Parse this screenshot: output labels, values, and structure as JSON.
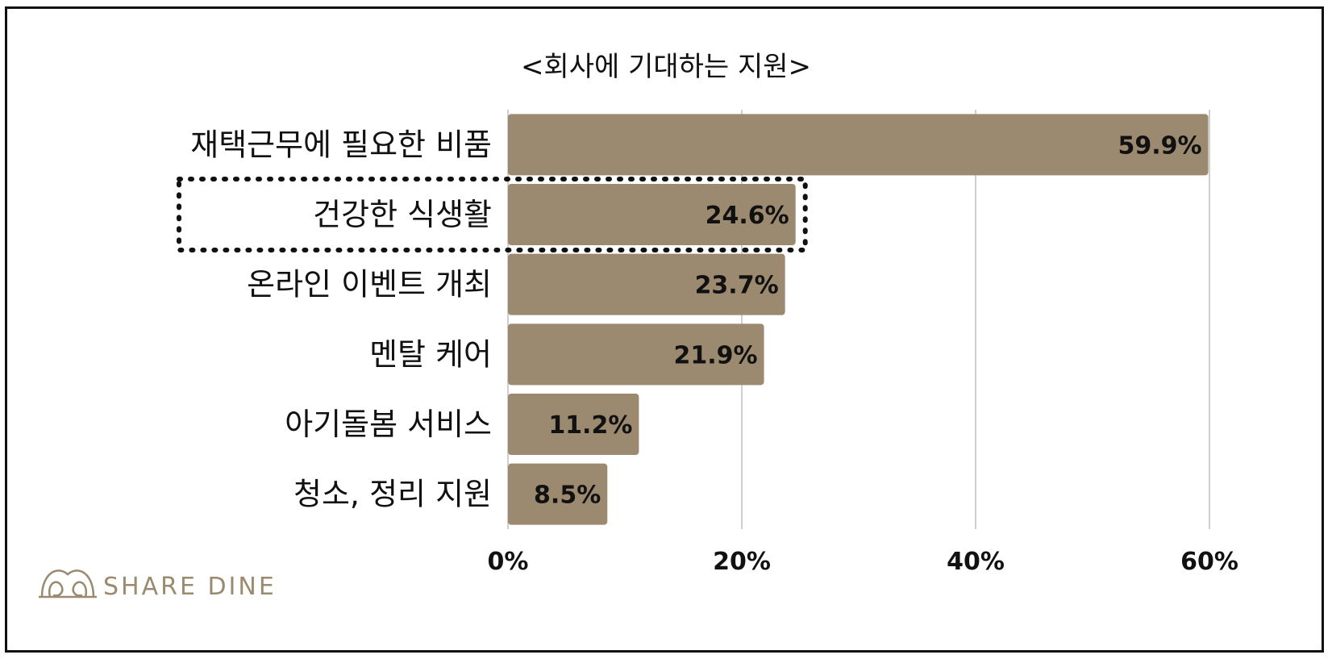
{
  "chart_data": {
    "type": "bar",
    "orientation": "horizontal",
    "title": "<회사에 기대하는 지원>",
    "categories": [
      "재택근무에 필요한 비품",
      "건강한 식생활",
      "온라인 이벤트 개최",
      "멘탈 케어",
      "아기돌봄 서비스",
      "청소, 정리 지원"
    ],
    "values": [
      59.9,
      24.6,
      23.7,
      21.9,
      11.2,
      8.5
    ],
    "value_labels": [
      "59.9%",
      "24.6%",
      "23.7%",
      "21.9%",
      "11.2%",
      "8.5%"
    ],
    "xlim": [
      0,
      60
    ],
    "x_ticks": [
      0,
      20,
      40,
      60
    ],
    "x_tick_labels": [
      "0%",
      "20%",
      "40%",
      "60%"
    ],
    "grid": "vertical",
    "highlighted_category": "건강한 식생활",
    "bar_color": "#9b8a6f"
  },
  "brand": {
    "name": "SHARE DINE",
    "color": "#9b8a6f",
    "icon": "sharedine-logo-icon"
  }
}
